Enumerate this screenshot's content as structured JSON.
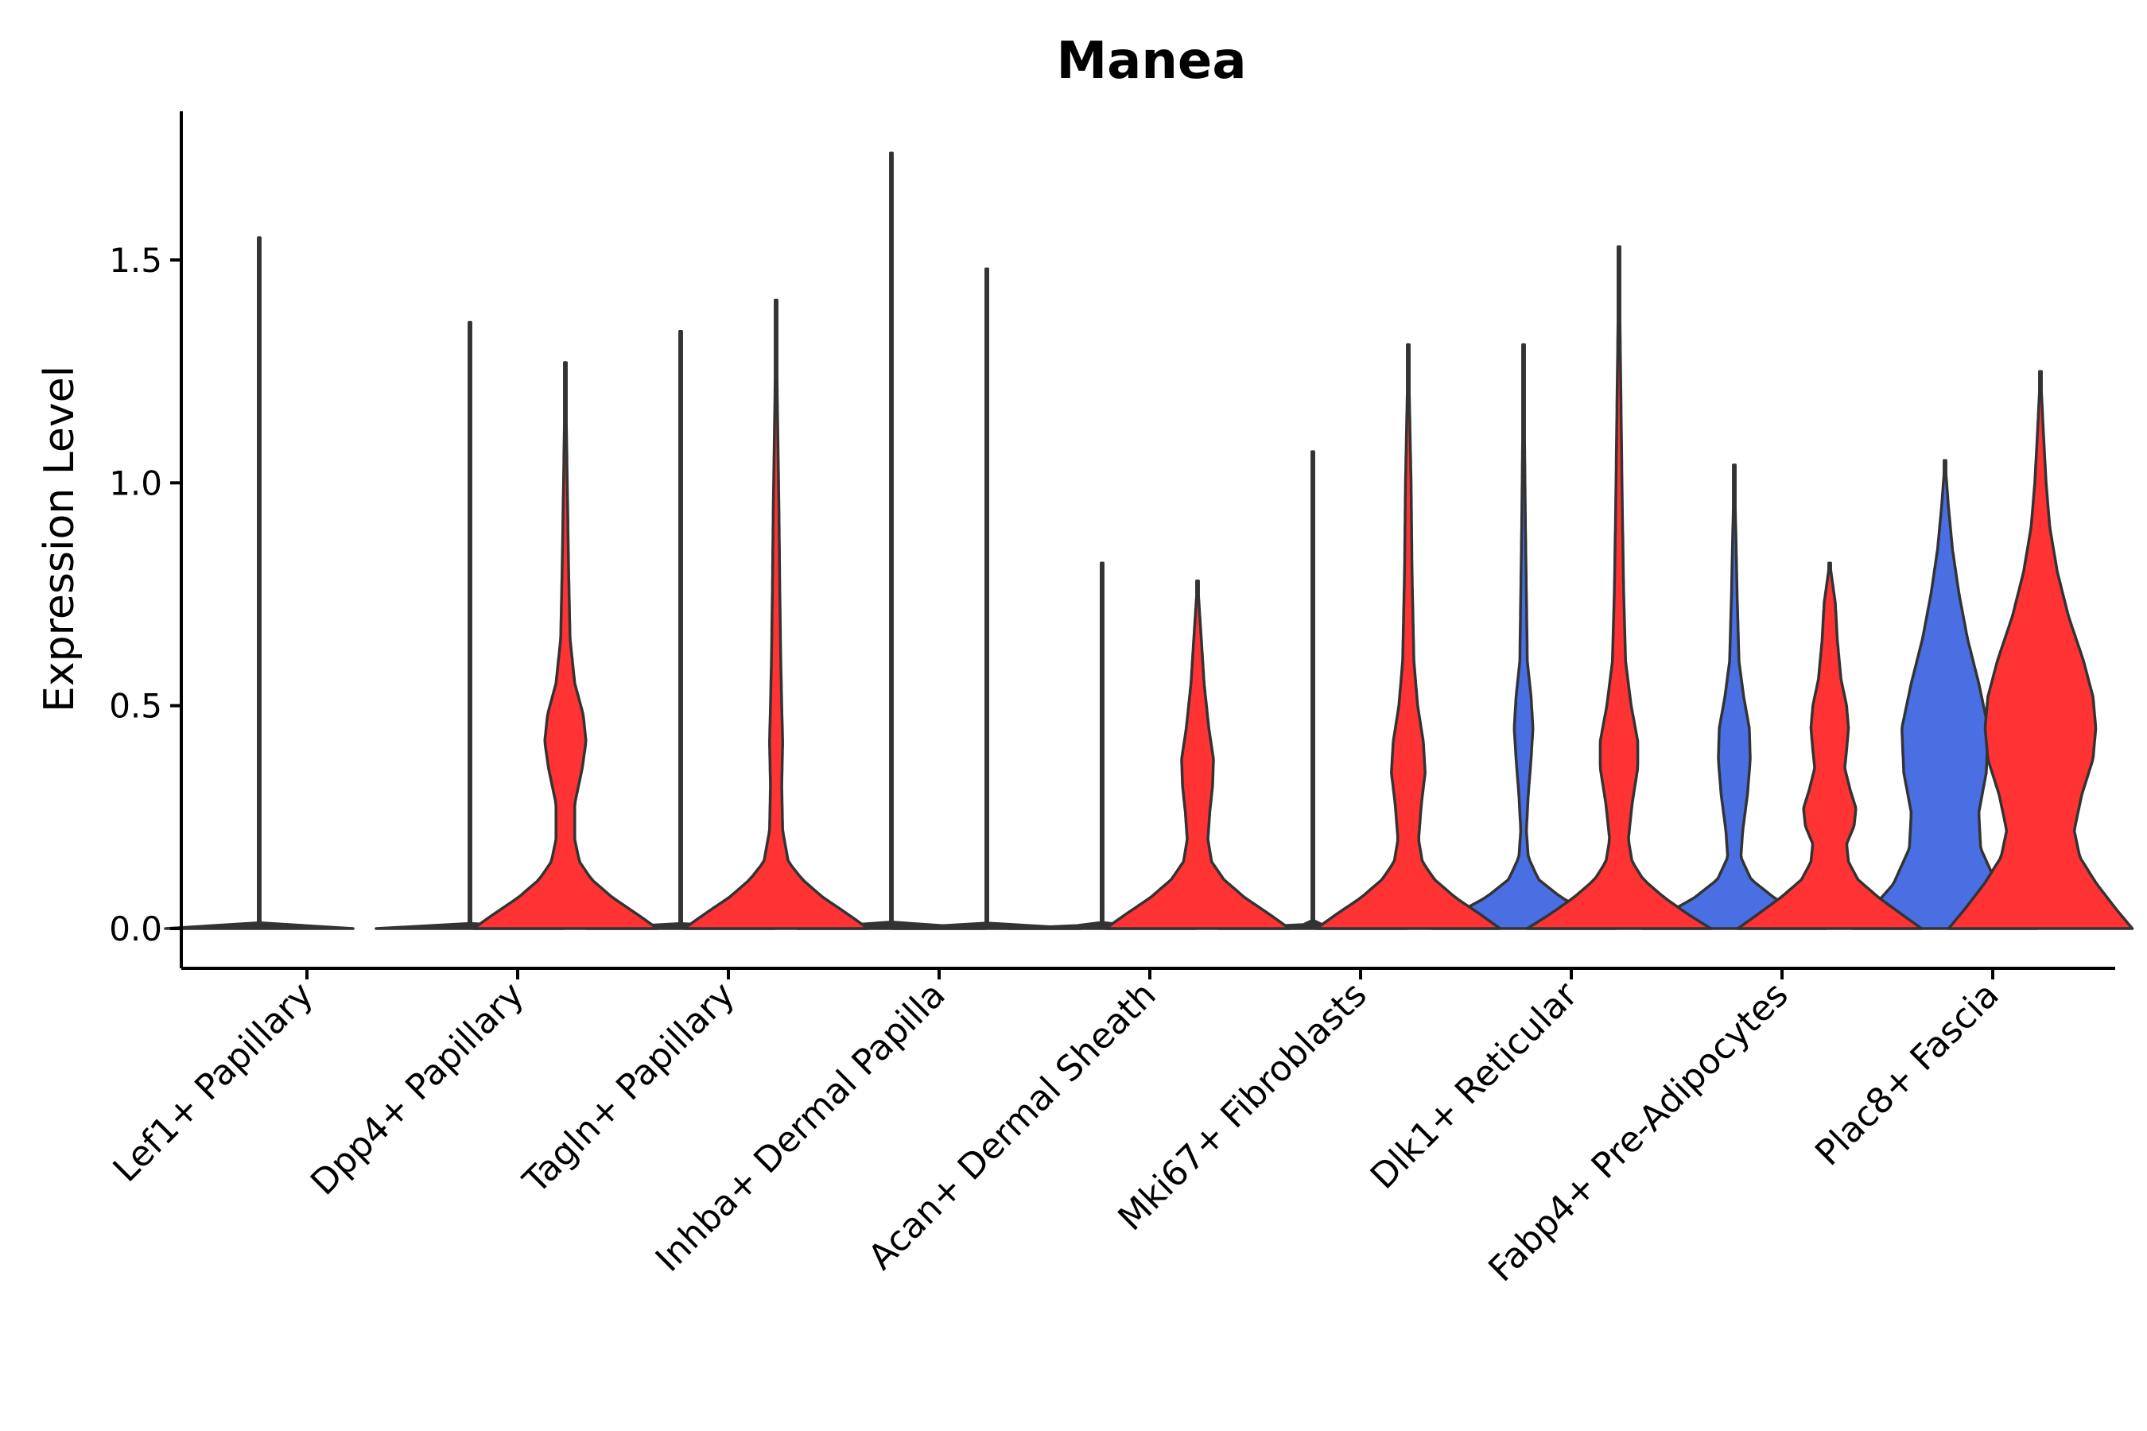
{
  "chart_data": {
    "type": "violin",
    "title": "Manea",
    "xlabel": "",
    "ylabel": "Expression Level",
    "ylim": [
      -0.09,
      1.83
    ],
    "yticks": [
      0.0,
      0.5,
      1.0,
      1.5
    ],
    "ytick_labels": [
      "0.0",
      "0.5",
      "1.0",
      "1.5"
    ],
    "grid": false,
    "legend": "none",
    "colors": {
      "group1": "#4A6FE3",
      "group2": "#FF3333",
      "outline": "#333333"
    },
    "categories": [
      "Lef1+ Papillary",
      "Dpp4+ Papillary",
      "Tagln+ Papillary",
      "Inhba+ Dermal Papilla",
      "Acan+ Dermal Sheath",
      "Mki67+ Fibroblasts",
      "Dlk1+ Reticular",
      "Fabp4+ Pre-Adipocytes",
      "Plac8+ Fascia"
    ],
    "series": [
      {
        "name": "group1",
        "violins": [
          {
            "max": 1.55,
            "profile": [
              [
                0,
                1.0
              ],
              [
                0.004,
                0.5
              ],
              [
                0.01,
                0.01
              ],
              [
                0.8,
                0.005
              ],
              [
                1.55,
                0.005
              ]
            ]
          },
          {
            "max": 1.36,
            "profile": [
              [
                0,
                1.0
              ],
              [
                0.004,
                0.5
              ],
              [
                0.01,
                0.01
              ],
              [
                1.36,
                0.005
              ]
            ]
          },
          {
            "max": 1.34,
            "profile": [
              [
                0,
                1.0
              ],
              [
                0.004,
                0.5
              ],
              [
                0.01,
                0.01
              ],
              [
                1.34,
                0.005
              ]
            ]
          },
          {
            "max": 1.74,
            "profile": [
              [
                0,
                1.0
              ],
              [
                0.004,
                0.5
              ],
              [
                0.01,
                0.01
              ],
              [
                1.74,
                0.005
              ]
            ]
          },
          {
            "max": 0.82,
            "profile": [
              [
                0,
                1.0
              ],
              [
                0.004,
                0.5
              ],
              [
                0.01,
                0.01
              ],
              [
                0.82,
                0.005
              ]
            ]
          },
          {
            "max": 1.07,
            "profile": [
              [
                0,
                1.0
              ],
              [
                0.004,
                0.5
              ],
              [
                0.01,
                0.01
              ],
              [
                1.07,
                0.005
              ]
            ]
          },
          {
            "max": 1.31,
            "profile": [
              [
                0,
                0.98
              ],
              [
                0.03,
                0.75
              ],
              [
                0.07,
                0.4
              ],
              [
                0.11,
                0.16
              ],
              [
                0.16,
                0.05
              ],
              [
                0.22,
                0.03
              ],
              [
                0.3,
                0.05
              ],
              [
                0.38,
                0.08
              ],
              [
                0.45,
                0.1
              ],
              [
                0.52,
                0.08
              ],
              [
                0.6,
                0.04
              ],
              [
                0.75,
                0.03
              ],
              [
                0.9,
                0.02
              ],
              [
                1.1,
                0.01
              ],
              [
                1.31,
                0.0
              ]
            ]
          },
          {
            "max": 1.04,
            "profile": [
              [
                0,
                0.98
              ],
              [
                0.03,
                0.75
              ],
              [
                0.07,
                0.42
              ],
              [
                0.11,
                0.18
              ],
              [
                0.16,
                0.07
              ],
              [
                0.22,
                0.09
              ],
              [
                0.3,
                0.14
              ],
              [
                0.38,
                0.17
              ],
              [
                0.45,
                0.16
              ],
              [
                0.52,
                0.1
              ],
              [
                0.6,
                0.05
              ],
              [
                0.75,
                0.03
              ],
              [
                0.9,
                0.015
              ],
              [
                1.04,
                0.0
              ]
            ]
          },
          {
            "max": 1.05,
            "profile": [
              [
                0,
                0.98
              ],
              [
                0.04,
                0.8
              ],
              [
                0.1,
                0.55
              ],
              [
                0.18,
                0.38
              ],
              [
                0.26,
                0.36
              ],
              [
                0.35,
                0.44
              ],
              [
                0.45,
                0.46
              ],
              [
                0.55,
                0.36
              ],
              [
                0.65,
                0.24
              ],
              [
                0.75,
                0.15
              ],
              [
                0.85,
                0.08
              ],
              [
                0.95,
                0.035
              ],
              [
                1.05,
                0.0
              ]
            ]
          }
        ]
      },
      {
        "name": "group2",
        "violins": [
          null,
          {
            "max": 1.27,
            "profile": [
              [
                0,
                0.98
              ],
              [
                0.03,
                0.78
              ],
              [
                0.07,
                0.5
              ],
              [
                0.11,
                0.28
              ],
              [
                0.15,
                0.15
              ],
              [
                0.2,
                0.1
              ],
              [
                0.28,
                0.1
              ],
              [
                0.36,
                0.18
              ],
              [
                0.42,
                0.22
              ],
              [
                0.48,
                0.19
              ],
              [
                0.55,
                0.1
              ],
              [
                0.65,
                0.05
              ],
              [
                0.8,
                0.035
              ],
              [
                1.0,
                0.02
              ],
              [
                1.27,
                0.0
              ]
            ]
          },
          {
            "max": 1.41,
            "profile": [
              [
                0,
                0.98
              ],
              [
                0.03,
                0.78
              ],
              [
                0.07,
                0.5
              ],
              [
                0.11,
                0.28
              ],
              [
                0.15,
                0.13
              ],
              [
                0.22,
                0.07
              ],
              [
                0.32,
                0.06
              ],
              [
                0.42,
                0.07
              ],
              [
                0.5,
                0.06
              ],
              [
                0.6,
                0.05
              ],
              [
                0.75,
                0.04
              ],
              [
                0.95,
                0.03
              ],
              [
                1.15,
                0.015
              ],
              [
                1.41,
                0.0
              ]
            ]
          },
          {
            "max": 1.48,
            "profile": [
              [
                0,
                1.0
              ],
              [
                0.004,
                0.5
              ],
              [
                0.01,
                0.01
              ],
              [
                1.48,
                0.005
              ]
            ]
          },
          {
            "max": 0.78,
            "profile": [
              [
                0,
                0.98
              ],
              [
                0.03,
                0.78
              ],
              [
                0.07,
                0.5
              ],
              [
                0.11,
                0.28
              ],
              [
                0.15,
                0.15
              ],
              [
                0.2,
                0.11
              ],
              [
                0.26,
                0.13
              ],
              [
                0.32,
                0.16
              ],
              [
                0.38,
                0.17
              ],
              [
                0.45,
                0.12
              ],
              [
                0.55,
                0.07
              ],
              [
                0.65,
                0.04
              ],
              [
                0.78,
                0.0
              ]
            ]
          },
          {
            "max": 1.31,
            "profile": [
              [
                0,
                0.98
              ],
              [
                0.03,
                0.78
              ],
              [
                0.07,
                0.5
              ],
              [
                0.11,
                0.28
              ],
              [
                0.15,
                0.15
              ],
              [
                0.2,
                0.11
              ],
              [
                0.28,
                0.14
              ],
              [
                0.35,
                0.18
              ],
              [
                0.42,
                0.16
              ],
              [
                0.5,
                0.1
              ],
              [
                0.6,
                0.06
              ],
              [
                0.8,
                0.04
              ],
              [
                1.0,
                0.03
              ],
              [
                1.31,
                0.0
              ]
            ]
          },
          {
            "max": 1.53,
            "profile": [
              [
                0,
                0.98
              ],
              [
                0.03,
                0.75
              ],
              [
                0.07,
                0.48
              ],
              [
                0.11,
                0.26
              ],
              [
                0.15,
                0.14
              ],
              [
                0.2,
                0.1
              ],
              [
                0.28,
                0.14
              ],
              [
                0.36,
                0.2
              ],
              [
                0.42,
                0.2
              ],
              [
                0.5,
                0.13
              ],
              [
                0.6,
                0.07
              ],
              [
                0.75,
                0.05
              ],
              [
                0.95,
                0.035
              ],
              [
                1.2,
                0.02
              ],
              [
                1.53,
                0.0
              ]
            ]
          },
          {
            "max": 0.82,
            "profile": [
              [
                0,
                0.98
              ],
              [
                0.03,
                0.78
              ],
              [
                0.07,
                0.52
              ],
              [
                0.11,
                0.3
              ],
              [
                0.15,
                0.2
              ],
              [
                0.19,
                0.18
              ],
              [
                0.23,
                0.26
              ],
              [
                0.27,
                0.28
              ],
              [
                0.31,
                0.22
              ],
              [
                0.36,
                0.16
              ],
              [
                0.4,
                0.18
              ],
              [
                0.45,
                0.2
              ],
              [
                0.5,
                0.18
              ],
              [
                0.56,
                0.12
              ],
              [
                0.65,
                0.08
              ],
              [
                0.73,
                0.06
              ],
              [
                0.82,
                0.0
              ]
            ]
          },
          {
            "max": 1.25,
            "profile": [
              [
                0,
                0.98
              ],
              [
                0.04,
                0.82
              ],
              [
                0.1,
                0.6
              ],
              [
                0.16,
                0.42
              ],
              [
                0.22,
                0.36
              ],
              [
                0.3,
                0.44
              ],
              [
                0.38,
                0.56
              ],
              [
                0.45,
                0.59
              ],
              [
                0.52,
                0.56
              ],
              [
                0.6,
                0.46
              ],
              [
                0.7,
                0.3
              ],
              [
                0.8,
                0.18
              ],
              [
                0.9,
                0.1
              ],
              [
                1.0,
                0.06
              ],
              [
                1.12,
                0.03
              ],
              [
                1.25,
                0.0
              ]
            ]
          }
        ]
      }
    ]
  }
}
